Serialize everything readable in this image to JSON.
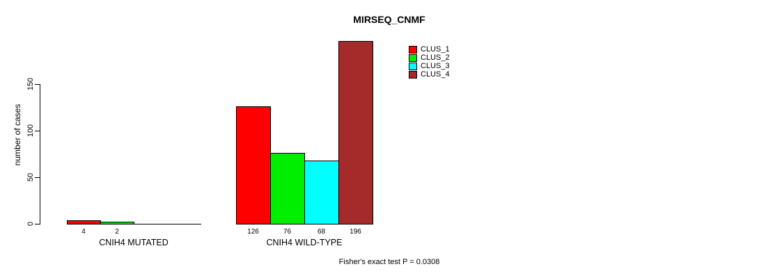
{
  "title": "MIRSEQ_CNMF",
  "footer": "Fisher's exact test P = 0.0308",
  "chart_data": {
    "type": "bar",
    "title": "MIRSEQ_CNMF",
    "xlabel": "",
    "ylabel": "number of cases",
    "ylim": [
      0,
      150
    ],
    "yticks": [
      0,
      50,
      100,
      150
    ],
    "grid": false,
    "legend_position": "top-right",
    "categories": [
      "CNIH4 MUTATED",
      "CNIH4 WILD-TYPE"
    ],
    "series": [
      {
        "name": "CLUS_1",
        "color": "#FF0000",
        "values": [
          4,
          126
        ]
      },
      {
        "name": "CLUS_2",
        "color": "#00EE00",
        "values": [
          2,
          76
        ]
      },
      {
        "name": "CLUS_3",
        "color": "#00FFFF",
        "values": [
          0,
          68
        ]
      },
      {
        "name": "CLUS_4",
        "color": "#A52A2A",
        "values": [
          0,
          196
        ]
      }
    ],
    "bar_value_labels": [
      [
        "4",
        "2",
        "",
        ""
      ],
      [
        "126",
        "76",
        "68",
        "196"
      ]
    ],
    "annotation": "Fisher's exact test P = 0.0308"
  }
}
